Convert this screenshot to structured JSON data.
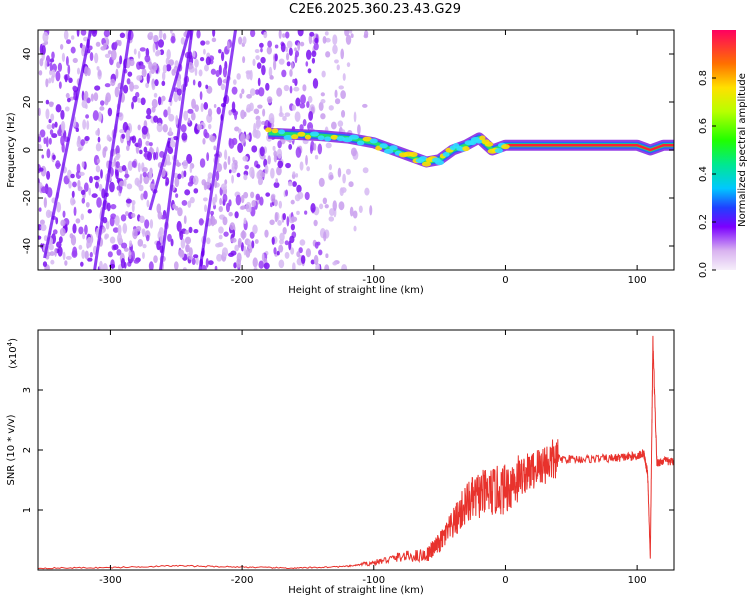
{
  "title": "C2E6.2025.360.23.43.G29",
  "chart_data": [
    {
      "type": "heatmap",
      "title": "C2E6.2025.360.23.43.G29",
      "xlabel": "Height of straight line (km)",
      "ylabel": "Frequency (Hz)",
      "xlim": [
        -355,
        128
      ],
      "ylim": [
        -50,
        50
      ],
      "x_ticks": [
        -300,
        -200,
        -100,
        0,
        100
      ],
      "y_ticks": [
        -40,
        -20,
        0,
        20,
        40
      ],
      "colorbar": {
        "label": "Normalized spectral amplitude",
        "range": [
          0.0,
          1.0
        ],
        "ticks": [
          0.0,
          0.2,
          0.4,
          0.6,
          0.8
        ],
        "tick_labels": [
          "0.0",
          "0.2",
          "0.4",
          "0.6",
          "0.8"
        ]
      },
      "track": {
        "x": [
          -180,
          -160,
          -140,
          -120,
          -100,
          -85,
          -70,
          -60,
          -50,
          -40,
          -30,
          -20,
          -10,
          0,
          20,
          40,
          60,
          80,
          100,
          110,
          120,
          128
        ],
        "y": [
          7,
          6.5,
          6,
          5,
          3,
          0,
          -3,
          -5,
          -4,
          0,
          2,
          5,
          0,
          2,
          2,
          2,
          2,
          2,
          2,
          0,
          2,
          2
        ]
      },
      "noise_region_x": [
        -355,
        -140
      ]
    },
    {
      "type": "line",
      "xlabel": "Height of straight line (km)",
      "ylabel": "SNR (10 * v/v)",
      "y_scale_label": "(x10",
      "y_scale_exp": "4",
      "y_scale_close": ")",
      "xlim": [
        -355,
        128
      ],
      "ylim": [
        0,
        4
      ],
      "x_ticks": [
        -300,
        -200,
        -100,
        0,
        100
      ],
      "y_ticks": [
        1,
        2,
        3
      ],
      "color": "#e8322c",
      "series": [
        {
          "x": [
            -355,
            -300,
            -250,
            -200,
            -160,
            -120,
            -100,
            -80,
            -60,
            -50,
            -40,
            -30,
            -20,
            -10,
            0,
            10,
            20,
            30,
            40,
            60,
            80,
            90,
            100,
            105,
            108,
            110,
            112,
            115,
            120,
            128
          ],
          "y": [
            0.03,
            0.04,
            0.07,
            0.05,
            0.03,
            0.06,
            0.12,
            0.22,
            0.25,
            0.45,
            0.75,
            1.1,
            1.25,
            1.3,
            1.35,
            1.55,
            1.65,
            1.78,
            1.85,
            1.85,
            1.86,
            1.88,
            1.9,
            1.95,
            1.6,
            0.2,
            3.8,
            1.78,
            1.82,
            1.8
          ]
        }
      ]
    }
  ]
}
